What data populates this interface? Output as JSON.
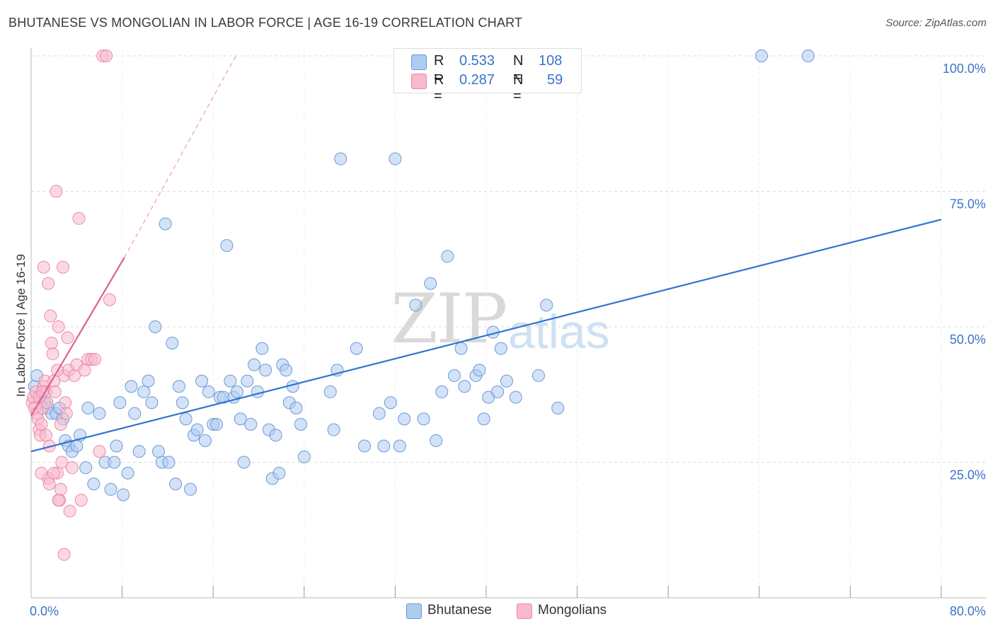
{
  "header": {
    "title": "BHUTANESE VS MONGOLIAN IN LABOR FORCE | AGE 16-19 CORRELATION CHART",
    "source": "Source: ZipAtlas.com"
  },
  "legend": {
    "rows": [
      {
        "r_label": "R =",
        "r_value": "0.533",
        "n_label": "N =",
        "n_value": "108",
        "color": "#aecbf0"
      },
      {
        "r_label": "R =",
        "r_value": "0.287",
        "n_label": "N =",
        "n_value": "59",
        "color": "#f7b9cc"
      }
    ]
  },
  "bottom_legend": {
    "bhutanese": "Bhutanese",
    "mongolians": "Mongolians"
  },
  "watermark": {
    "zip": "ZIP",
    "atlas": "atlas"
  },
  "chart_data": {
    "type": "scatter",
    "ylabel": "In Labor Force | Age 16-19",
    "xlabel": "",
    "xlim": [
      0,
      80
    ],
    "ylim": [
      0,
      105
    ],
    "x_tick_labels": [
      {
        "value": 0,
        "label": "0.0%"
      },
      {
        "value": 80,
        "label": "80.0%"
      }
    ],
    "y_tick_labels": [
      {
        "value": 25,
        "label": "25.0%"
      },
      {
        "value": 50,
        "label": "50.0%"
      },
      {
        "value": 75,
        "label": "75.0%"
      },
      {
        "value": 100,
        "label": "100.0%"
      }
    ],
    "x_minor_ticks": [
      8,
      16,
      24,
      32,
      40,
      48,
      56,
      64,
      72,
      80
    ],
    "grid": true,
    "colors": {
      "bhutanese_fill": "#aecbf0",
      "bhutanese_stroke": "#6b9ad8",
      "bhutanese_line": "#2f74d0",
      "mongolian_fill": "#f7b9cc",
      "mongolian_stroke": "#ec8aa8",
      "mongolian_line": "#e0608a",
      "tick_label": "#3a74c8",
      "grid": "#dcdcdc"
    },
    "series": [
      {
        "name": "Bhutanese",
        "r": 0.533,
        "n": 108,
        "trend": {
          "x": [
            0,
            80
          ],
          "y": [
            27.0,
            69.8
          ]
        },
        "points": [
          [
            0.3,
            39
          ],
          [
            0.5,
            41
          ],
          [
            0.8,
            37
          ],
          [
            1.0,
            38
          ],
          [
            1.2,
            36
          ],
          [
            1.5,
            35
          ],
          [
            1.8,
            34
          ],
          [
            2.2,
            34
          ],
          [
            2.5,
            35
          ],
          [
            2.8,
            33
          ],
          [
            3.0,
            29
          ],
          [
            3.3,
            28
          ],
          [
            3.6,
            27
          ],
          [
            4.0,
            28
          ],
          [
            4.3,
            30
          ],
          [
            4.8,
            24
          ],
          [
            5.0,
            35
          ],
          [
            5.5,
            21
          ],
          [
            6.0,
            34
          ],
          [
            6.5,
            25
          ],
          [
            7.0,
            20
          ],
          [
            7.3,
            25
          ],
          [
            7.5,
            28
          ],
          [
            7.8,
            36
          ],
          [
            8.1,
            19
          ],
          [
            8.5,
            23
          ],
          [
            8.8,
            39
          ],
          [
            9.1,
            34
          ],
          [
            9.5,
            27
          ],
          [
            9.9,
            38
          ],
          [
            10.3,
            40
          ],
          [
            10.6,
            36
          ],
          [
            10.9,
            50
          ],
          [
            11.2,
            27
          ],
          [
            11.5,
            25
          ],
          [
            11.8,
            69
          ],
          [
            12.1,
            25
          ],
          [
            12.4,
            47
          ],
          [
            12.7,
            21
          ],
          [
            13.0,
            39
          ],
          [
            13.3,
            36
          ],
          [
            13.6,
            33
          ],
          [
            14.0,
            20
          ],
          [
            14.3,
            30
          ],
          [
            14.6,
            31
          ],
          [
            15.0,
            40
          ],
          [
            15.3,
            29
          ],
          [
            15.6,
            38
          ],
          [
            16.0,
            32
          ],
          [
            16.3,
            32
          ],
          [
            16.6,
            37
          ],
          [
            16.9,
            37
          ],
          [
            17.2,
            65
          ],
          [
            17.5,
            40
          ],
          [
            17.8,
            37
          ],
          [
            18.1,
            38
          ],
          [
            18.4,
            33
          ],
          [
            18.7,
            25
          ],
          [
            19.0,
            40
          ],
          [
            19.3,
            32
          ],
          [
            19.6,
            43
          ],
          [
            19.9,
            38
          ],
          [
            20.3,
            46
          ],
          [
            20.6,
            42
          ],
          [
            20.9,
            31
          ],
          [
            21.2,
            22
          ],
          [
            21.5,
            30
          ],
          [
            21.8,
            23
          ],
          [
            22.1,
            43
          ],
          [
            22.4,
            42
          ],
          [
            22.7,
            36
          ],
          [
            23.0,
            39
          ],
          [
            23.3,
            35
          ],
          [
            23.7,
            32
          ],
          [
            24.0,
            26
          ],
          [
            26.3,
            38
          ],
          [
            26.6,
            31
          ],
          [
            26.9,
            42
          ],
          [
            27.2,
            81
          ],
          [
            28.6,
            46
          ],
          [
            29.3,
            28
          ],
          [
            30.6,
            34
          ],
          [
            31.0,
            28
          ],
          [
            31.6,
            36
          ],
          [
            32.0,
            81
          ],
          [
            32.4,
            28
          ],
          [
            32.8,
            33
          ],
          [
            33.8,
            54
          ],
          [
            34.5,
            33
          ],
          [
            35.1,
            58
          ],
          [
            35.6,
            29
          ],
          [
            36.1,
            38
          ],
          [
            36.6,
            63
          ],
          [
            37.2,
            41
          ],
          [
            37.8,
            46
          ],
          [
            38.1,
            39
          ],
          [
            39.1,
            41
          ],
          [
            39.4,
            42
          ],
          [
            39.8,
            33
          ],
          [
            40.2,
            37
          ],
          [
            40.6,
            49
          ],
          [
            41.0,
            38
          ],
          [
            41.3,
            46
          ],
          [
            41.8,
            40
          ],
          [
            42.6,
            37
          ],
          [
            44.6,
            41
          ],
          [
            45.3,
            54
          ],
          [
            46.3,
            35
          ],
          [
            64.2,
            100
          ],
          [
            68.3,
            100
          ]
        ]
      },
      {
        "name": "Mongolians",
        "r": 0.287,
        "n": 59,
        "trend": {
          "x": [
            0,
            8.2
          ],
          "y": [
            33.6,
            62.8
          ]
        },
        "trend_dashed": {
          "x": [
            8.2,
            18.0
          ],
          "y": [
            62.8,
            100
          ]
        },
        "points": [
          [
            0.1,
            36
          ],
          [
            0.2,
            37
          ],
          [
            0.3,
            35
          ],
          [
            0.4,
            38
          ],
          [
            0.5,
            34
          ],
          [
            0.6,
            33
          ],
          [
            0.7,
            31
          ],
          [
            0.8,
            30
          ],
          [
            0.9,
            32
          ],
          [
            1.0,
            35
          ],
          [
            1.1,
            39
          ],
          [
            1.2,
            40
          ],
          [
            1.3,
            38
          ],
          [
            1.4,
            36
          ],
          [
            1.5,
            22
          ],
          [
            1.6,
            28
          ],
          [
            1.7,
            52
          ],
          [
            1.8,
            47
          ],
          [
            1.9,
            45
          ],
          [
            2.0,
            40
          ],
          [
            2.1,
            38
          ],
          [
            2.2,
            75
          ],
          [
            2.3,
            23
          ],
          [
            2.4,
            50
          ],
          [
            2.5,
            18
          ],
          [
            2.6,
            20
          ],
          [
            2.7,
            25
          ],
          [
            2.8,
            61
          ],
          [
            2.9,
            41
          ],
          [
            3.0,
            36
          ],
          [
            3.1,
            34
          ],
          [
            3.2,
            48
          ],
          [
            3.3,
            42
          ],
          [
            3.4,
            16
          ],
          [
            3.6,
            24
          ],
          [
            3.8,
            41
          ],
          [
            4.0,
            43
          ],
          [
            4.2,
            70
          ],
          [
            4.4,
            18
          ],
          [
            4.7,
            42
          ],
          [
            5.0,
            44
          ],
          [
            5.3,
            44
          ],
          [
            5.6,
            44
          ],
          [
            6.0,
            27
          ],
          [
            6.3,
            100
          ],
          [
            6.6,
            100
          ],
          [
            0.9,
            23
          ],
          [
            1.3,
            30
          ],
          [
            1.6,
            21
          ],
          [
            2.0,
            23
          ],
          [
            2.3,
            42
          ],
          [
            2.6,
            32
          ],
          [
            1.1,
            61
          ],
          [
            1.5,
            58
          ],
          [
            2.9,
            8
          ],
          [
            0.7,
            37
          ],
          [
            1.0,
            38
          ],
          [
            2.4,
            18
          ],
          [
            6.9,
            55
          ]
        ]
      }
    ]
  }
}
